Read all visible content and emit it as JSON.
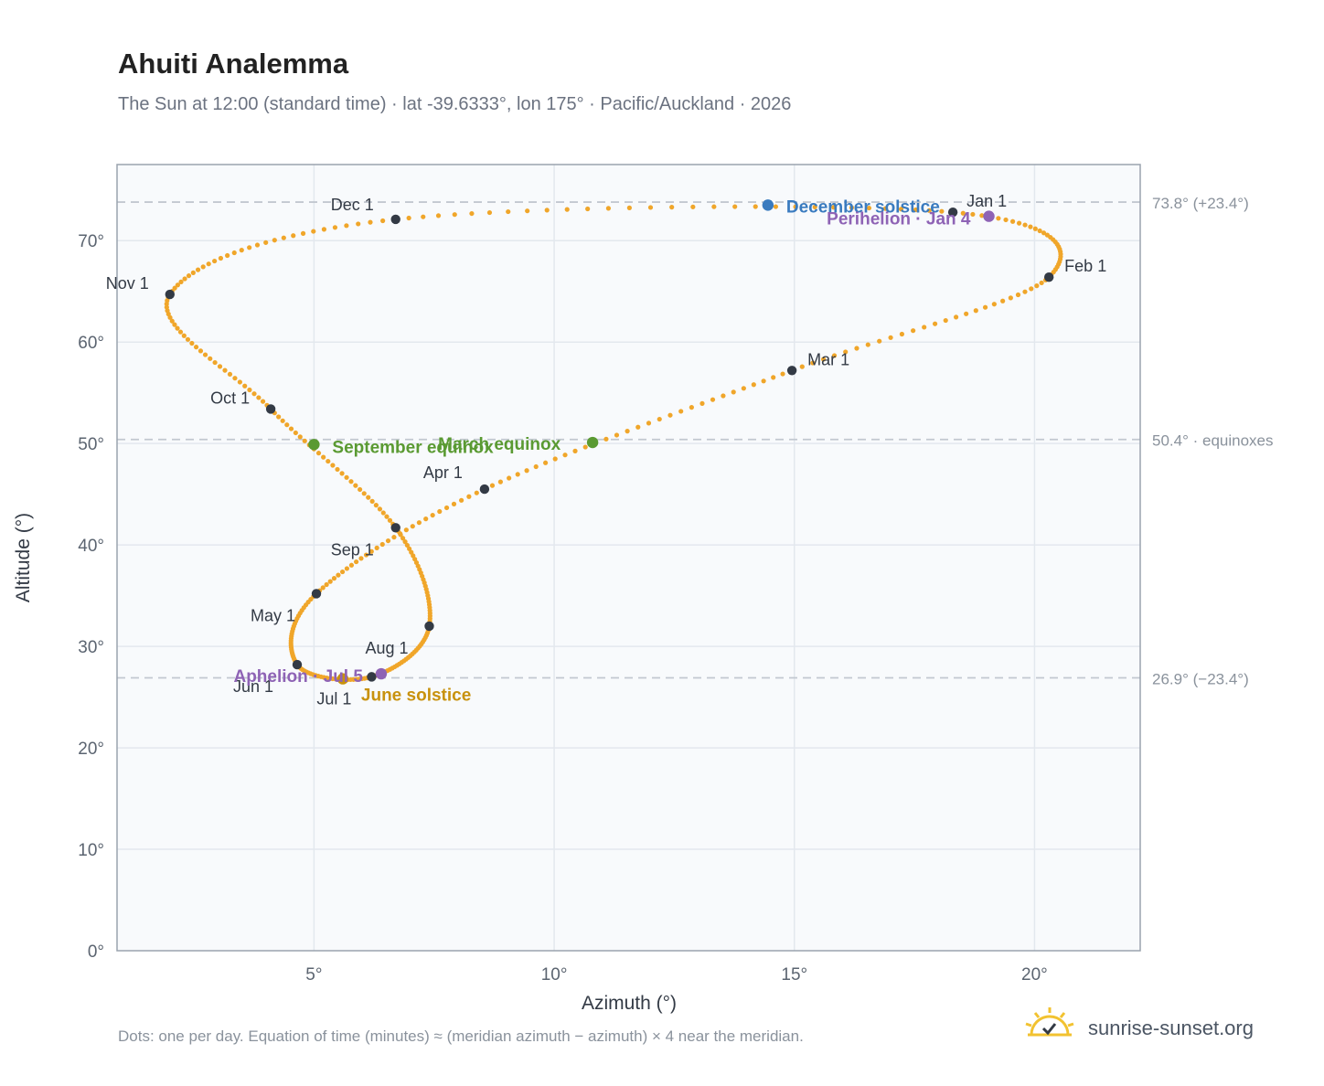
{
  "header": {
    "title": "Ahuiti Analemma",
    "subtitle": "The Sun at 12:00 (standard time) · lat -39.6333°, lon 175° · Pacific/Auckland · 2026"
  },
  "footer": {
    "footnote": "Dots: one per day. Equation of time (minutes) ≈ (meridian azimuth − azimuth) × 4 near the meridian.",
    "brand": "sunrise-sunset.org"
  },
  "colors": {
    "path": "#f0a62a",
    "month_marker": "#333a45",
    "equinox": "#5a9a32",
    "december_solstice": "#3a7bbf",
    "june_solstice": "#c8920e",
    "apsis": "#8e63b5",
    "plot_background": "#f8fafc",
    "grid": "#e3e8ee",
    "reference_line": "#c2c8d0",
    "logo": "#f2c230"
  },
  "chart_data": {
    "type": "scatter",
    "xlabel": "Azimuth (°)",
    "ylabel": "Altitude (°)",
    "xlim": [
      0.9,
      22.2
    ],
    "ylim": [
      0,
      77.5
    ],
    "x_ticks": [
      5,
      10,
      15,
      20
    ],
    "x_tick_labels": [
      "5°",
      "10°",
      "15°",
      "20°"
    ],
    "y_ticks": [
      0,
      10,
      20,
      30,
      40,
      50,
      60,
      70
    ],
    "y_tick_labels": [
      "0°",
      "10°",
      "20°",
      "30°",
      "40°",
      "50°",
      "60°",
      "70°"
    ],
    "grid": true,
    "reference_lines": [
      {
        "y": 73.8,
        "label": "73.8° (+23.4°)"
      },
      {
        "y": 50.4,
        "label": "50.4° · equinoxes"
      },
      {
        "y": 26.9,
        "label": "26.9° (−23.4°)"
      }
    ],
    "month_markers": [
      {
        "label": "Jan 1",
        "x": 18.3,
        "y": 72.8
      },
      {
        "label": "Feb 1",
        "x": 20.3,
        "y": 66.4
      },
      {
        "label": "Mar 1",
        "x": 14.95,
        "y": 57.2
      },
      {
        "label": "Apr 1",
        "x": 8.55,
        "y": 45.5
      },
      {
        "label": "May 1",
        "x": 5.05,
        "y": 35.2
      },
      {
        "label": "Jun 1",
        "x": 4.65,
        "y": 28.2
      },
      {
        "label": "Jul 1",
        "x": 6.2,
        "y": 27.0
      },
      {
        "label": "Aug 1",
        "x": 7.4,
        "y": 32.0
      },
      {
        "label": "Sep 1",
        "x": 6.7,
        "y": 41.7
      },
      {
        "label": "Oct 1",
        "x": 4.1,
        "y": 53.4
      },
      {
        "label": "Nov 1",
        "x": 2.0,
        "y": 64.7
      },
      {
        "label": "Dec 1",
        "x": 6.7,
        "y": 72.1
      }
    ],
    "events": [
      {
        "label": "March equinox",
        "x": 10.8,
        "y": 50.1,
        "kind": "equinox"
      },
      {
        "label": "June solstice",
        "x": 5.6,
        "y": 26.8,
        "kind": "june_solstice"
      },
      {
        "label": "September equinox",
        "x": 5.0,
        "y": 49.9,
        "kind": "equinox"
      },
      {
        "label": "December solstice",
        "x": 14.45,
        "y": 73.5,
        "kind": "december_solstice"
      },
      {
        "label": "Perihelion · Jan 4",
        "x": 19.05,
        "y": 72.4,
        "kind": "apsis"
      },
      {
        "label": "Aphelion · Jul 5",
        "x": 6.4,
        "y": 27.3,
        "kind": "apsis"
      }
    ],
    "daily_path_note": "Dots: one per day"
  }
}
